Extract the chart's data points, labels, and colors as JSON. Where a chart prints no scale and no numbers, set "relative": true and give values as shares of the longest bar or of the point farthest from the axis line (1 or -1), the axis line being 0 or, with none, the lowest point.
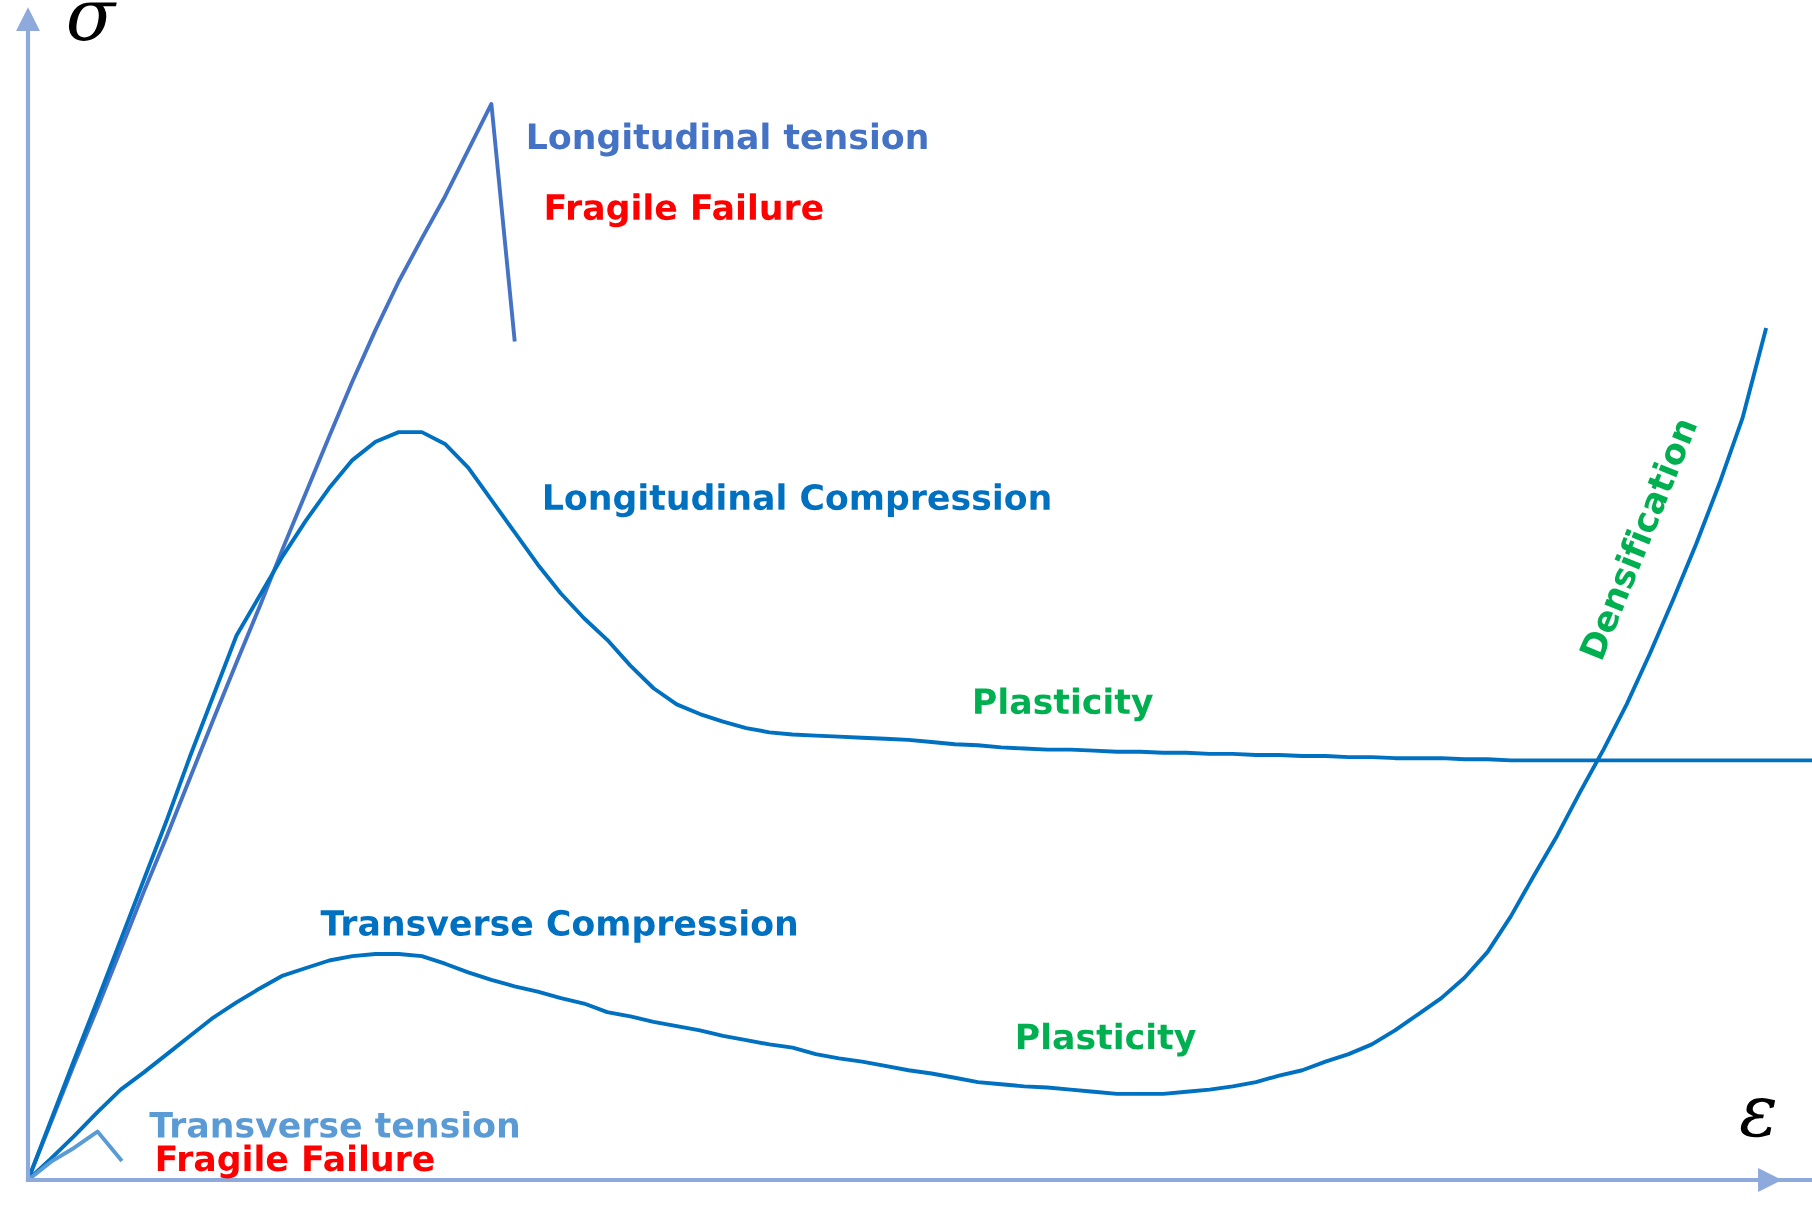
{
  "chart_data": {
    "type": "line",
    "relative": true,
    "xlabel": "ε",
    "ylabel": "σ",
    "grid": false,
    "legend": false,
    "marker": "none",
    "line_style": "solid",
    "categories": [
      null,
      null,
      null,
      null,
      null,
      null,
      null,
      null,
      null,
      null,
      null,
      null,
      null,
      null,
      null,
      null,
      null,
      null,
      null,
      null,
      null,
      null,
      null,
      null,
      null,
      null,
      null,
      null,
      null,
      null,
      null,
      null,
      null,
      null,
      null,
      null,
      null,
      null,
      null,
      null,
      null,
      null,
      null,
      null,
      null,
      null,
      null,
      null,
      null,
      null,
      null,
      null,
      null,
      null,
      null,
      null,
      null,
      null,
      null,
      null,
      null,
      null,
      null,
      null,
      null,
      null,
      null,
      null,
      null,
      null,
      null,
      null,
      null,
      null,
      null,
      null,
      null,
      null
    ],
    "series": [
      {
        "name": "Longitudinal tension",
        "color": "#4472c4",
        "values": [
          0,
          0.054,
          0.108,
          0.16,
          0.214,
          0.268,
          0.32,
          0.374,
          0.428,
          0.481,
          0.533,
          0.587,
          0.639,
          0.691,
          0.742,
          0.79,
          0.835,
          0.875,
          0.914,
          0.957,
          1,
          0.781,
          null,
          null,
          null,
          null,
          null,
          null,
          null,
          null,
          null,
          null,
          null,
          null,
          null,
          null,
          null,
          null,
          null,
          null,
          null,
          null,
          null,
          null,
          null,
          null,
          null,
          null,
          null,
          null,
          null,
          null,
          null,
          null,
          null,
          null,
          null,
          null,
          null,
          null,
          null,
          null,
          null,
          null,
          null,
          null,
          null,
          null,
          null,
          null,
          null,
          null,
          null,
          null,
          null,
          null,
          null,
          null
        ]
      },
      {
        "name": "Longitudinal Compression",
        "color": "#0070c0",
        "values": [
          0,
          0.056,
          0.112,
          0.167,
          0.223,
          0.279,
          0.335,
          0.394,
          0.45,
          0.506,
          0.543,
          0.58,
          0.613,
          0.643,
          0.669,
          0.686,
          0.695,
          0.695,
          0.684,
          0.662,
          0.632,
          0.602,
          0.572,
          0.545,
          0.522,
          0.502,
          0.478,
          0.457,
          0.442,
          0.433,
          0.426,
          0.42,
          0.416,
          0.414,
          0.413,
          0.412,
          0.411,
          0.41,
          0.409,
          0.407,
          0.405,
          0.404,
          0.402,
          0.401,
          0.4,
          0.4,
          0.399,
          0.398,
          0.398,
          0.397,
          0.397,
          0.396,
          0.396,
          0.395,
          0.395,
          0.394,
          0.394,
          0.393,
          0.393,
          0.392,
          0.392,
          0.392,
          0.391,
          0.391,
          0.39,
          0.39,
          0.39,
          0.39,
          0.39,
          0.39,
          0.39,
          0.39,
          0.39,
          0.39,
          0.39,
          0.39,
          0.39,
          0.39
        ]
      },
      {
        "name": "Transverse Compression",
        "color": "#0070c0",
        "values": [
          0,
          0.02,
          0.041,
          0.063,
          0.084,
          0.1,
          0.117,
          0.134,
          0.151,
          0.165,
          0.178,
          0.19,
          0.197,
          0.204,
          0.208,
          0.21,
          0.21,
          0.208,
          0.201,
          0.193,
          0.186,
          0.18,
          0.175,
          0.169,
          0.164,
          0.156,
          0.152,
          0.147,
          0.143,
          0.139,
          0.134,
          0.13,
          0.126,
          0.123,
          0.117,
          0.113,
          0.11,
          0.106,
          0.102,
          0.099,
          0.095,
          0.091,
          0.089,
          0.087,
          0.086,
          0.084,
          0.082,
          0.08,
          0.08,
          0.08,
          0.082,
          0.084,
          0.087,
          0.091,
          0.097,
          0.102,
          0.11,
          0.117,
          0.126,
          0.139,
          0.154,
          0.169,
          0.188,
          0.212,
          0.245,
          0.283,
          0.32,
          0.361,
          0.4,
          0.442,
          0.489,
          0.539,
          0.591,
          0.647,
          0.708,
          0.79,
          null,
          null
        ]
      },
      {
        "name": "Transverse tension",
        "color": "#5b9bd5",
        "values": [
          0,
          0.017,
          0.03,
          0.045,
          0.019,
          null,
          null,
          null,
          null,
          null,
          null,
          null,
          null,
          null,
          null,
          null,
          null,
          null,
          null,
          null,
          null,
          null,
          null,
          null,
          null,
          null,
          null,
          null,
          null,
          null,
          null,
          null,
          null,
          null,
          null,
          null,
          null,
          null,
          null,
          null,
          null,
          null,
          null,
          null,
          null,
          null,
          null,
          null,
          null,
          null,
          null,
          null,
          null,
          null,
          null,
          null,
          null,
          null,
          null,
          null,
          null,
          null,
          null,
          null,
          null,
          null,
          null,
          null,
          null,
          null,
          null,
          null,
          null,
          null,
          null,
          null,
          null,
          null
        ]
      }
    ],
    "annotations": [
      "Fragile Failure",
      "Fragile Failure",
      "Plasticity",
      "Plasticity",
      "Densification"
    ]
  }
}
